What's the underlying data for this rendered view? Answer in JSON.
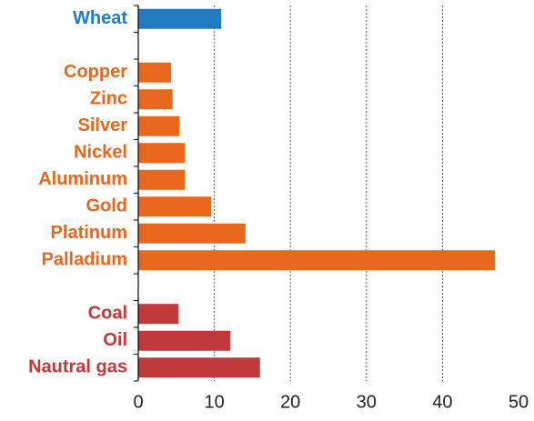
{
  "chart_data": {
    "type": "barh",
    "categories": [
      "Wheat",
      null,
      "Copper",
      "Zinc",
      "Silver",
      "Nickel",
      "Aluminum",
      "Gold",
      "Platinum",
      "Palladium",
      null,
      "Coal",
      "Oil",
      "Nautral gas"
    ],
    "values": [
      10.9,
      null,
      4.3,
      4.5,
      5.4,
      6.1,
      6.1,
      9.6,
      14.1,
      46.9,
      null,
      5.3,
      12.1,
      16.0
    ],
    "colors": [
      "#1f7cc4",
      null,
      "#e8671c",
      "#e8671c",
      "#e8671c",
      "#e8671c",
      "#e8671c",
      "#e8671c",
      "#e8671c",
      "#e8671c",
      null,
      "#c0393b",
      "#c0393b",
      "#c0393b"
    ],
    "xlim": [
      0,
      50
    ],
    "xticks": [
      0,
      10,
      20,
      30,
      40,
      50
    ],
    "grid": true
  }
}
